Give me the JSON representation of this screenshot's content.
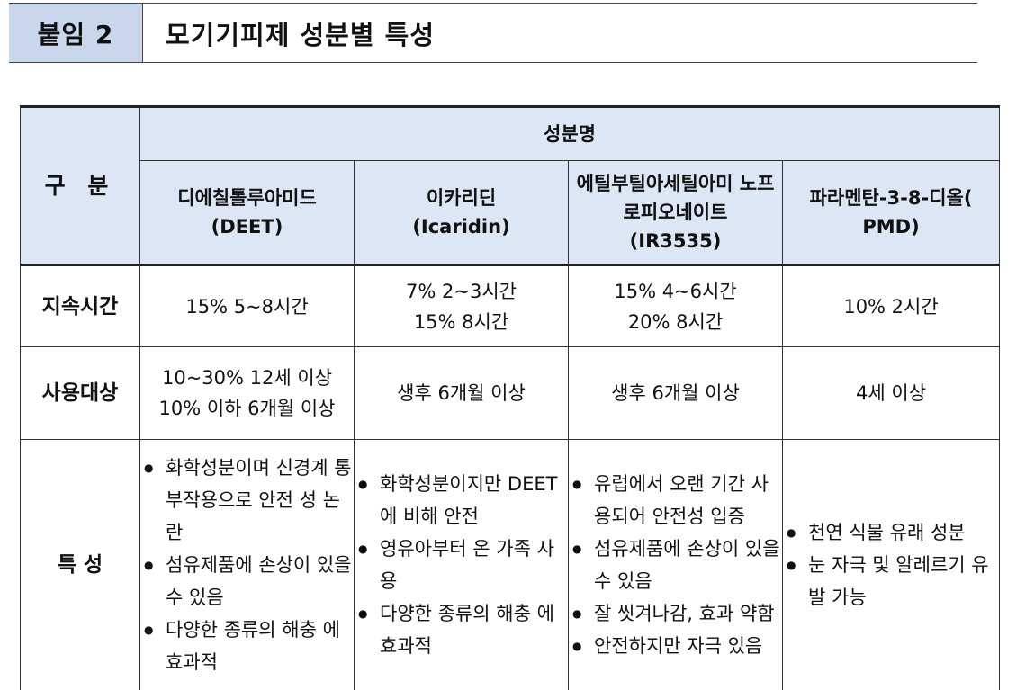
{
  "header": {
    "tag": "붙임 2",
    "title": "모기기피제 성분별 특성"
  },
  "table": {
    "gubun": "구 분",
    "group_header": "성분명",
    "ingredients": [
      {
        "name": "디에칠톨루아미드",
        "abbr": "(DEET)"
      },
      {
        "name": "이카리딘",
        "abbr": "(Icaridin)"
      },
      {
        "name": "에틸부틸아세틸아미 노프로피오네이트",
        "abbr": "(IR3535)"
      },
      {
        "name": "파라멘탄-3-8-디올(",
        "abbr": "PMD)"
      }
    ],
    "rows": {
      "duration": {
        "label": "지속시간",
        "cells": [
          [
            "15%  5~8시간"
          ],
          [
            "7%  2~3시간",
            "15%  8시간"
          ],
          [
            "15%  4~6시간",
            "20%  8시간"
          ],
          [
            "10%  2시간"
          ]
        ]
      },
      "target": {
        "label": "사용대상",
        "cells": [
          [
            "10~30%  12세  이상",
            "10%  이하  6개월  이상"
          ],
          [
            "생후  6개월  이상"
          ],
          [
            "생후  6개월  이상"
          ],
          [
            "4세  이상"
          ]
        ]
      },
      "features": {
        "label": "특 성",
        "cells": [
          [
            "화학성분이며  신경계 통  부작용으로  안전 성  논란",
            "섬유제품에  손상이 있을  수  있음",
            "다양한  종류의  해충 에  효과적"
          ],
          [
            "화학성분이지만 DEET에  비해  안전",
            "영유아부터  온  가족 사용",
            "다양한  종류의  해충 에  효과적"
          ],
          [
            "유럽에서  오랜  기간 사용되어  안전성  입증",
            "섬유제품에  손상이 있을  수  있음",
            "잘  씻겨나감,  효과 약함",
            "안전하지만  자극  있음"
          ],
          [
            "천연  식물  유래  성분",
            "눈  자극  및  알레르기 유발  가능"
          ]
        ]
      }
    }
  }
}
